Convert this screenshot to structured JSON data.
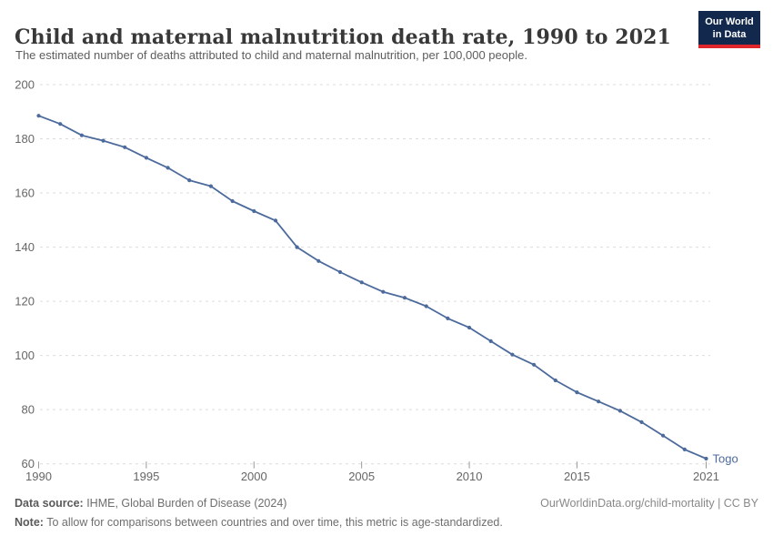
{
  "header": {
    "title": "Child and maternal malnutrition death rate, 1990 to 2021",
    "subtitle": "The estimated number of deaths attributed to child and maternal malnutrition, per 100,000 people.",
    "logo": {
      "line1": "Our World",
      "line2": "in Data",
      "bg_color": "#12294d",
      "accent_color": "#e0262d"
    }
  },
  "chart_data": {
    "type": "line",
    "title": "Child and maternal malnutrition death rate, 1990 to 2021",
    "subtitle": "The estimated number of deaths attributed to child and maternal malnutrition, per 100,000 people.",
    "xlabel": "",
    "ylabel": "",
    "xlim": [
      1990,
      2021
    ],
    "ylim": [
      60,
      200
    ],
    "x_ticks": [
      1990,
      1995,
      2000,
      2005,
      2010,
      2015,
      2021
    ],
    "y_ticks": [
      60,
      80,
      100,
      120,
      140,
      160,
      180,
      200
    ],
    "grid": "horizontal-dashed",
    "legend_position": "end-of-line-label",
    "series": [
      {
        "name": "Togo",
        "color": "#4c6a9c",
        "x": [
          1990,
          1991,
          1992,
          1993,
          1994,
          1995,
          1996,
          1997,
          1998,
          1999,
          2000,
          2001,
          2002,
          2003,
          2004,
          2005,
          2006,
          2007,
          2008,
          2009,
          2010,
          2011,
          2012,
          2013,
          2014,
          2015,
          2016,
          2017,
          2018,
          2019,
          2020,
          2021
        ],
        "values": [
          188.5,
          185.5,
          181.3,
          179.3,
          176.9,
          173.0,
          169.3,
          164.7,
          162.5,
          157.0,
          153.3,
          149.8,
          140.0,
          134.9,
          130.8,
          127.0,
          123.5,
          121.3,
          118.2,
          113.7,
          110.3,
          105.3,
          100.3,
          96.6,
          90.8,
          86.4,
          83.0,
          79.6,
          75.4,
          70.4,
          65.3,
          61.9
        ]
      }
    ],
    "colors": {
      "gridline": "#dcdcdc",
      "tick_label": "#666666",
      "tick_mark": "#999999"
    }
  },
  "footer": {
    "source_label": "Data source:",
    "source_text": " IHME, Global Burden of Disease (2024)",
    "rights": "OurWorldinData.org/child-mortality | CC BY",
    "note_label": "Note:",
    "note_text": " To allow for comparisons between countries and over time, this metric is age-standardized."
  }
}
